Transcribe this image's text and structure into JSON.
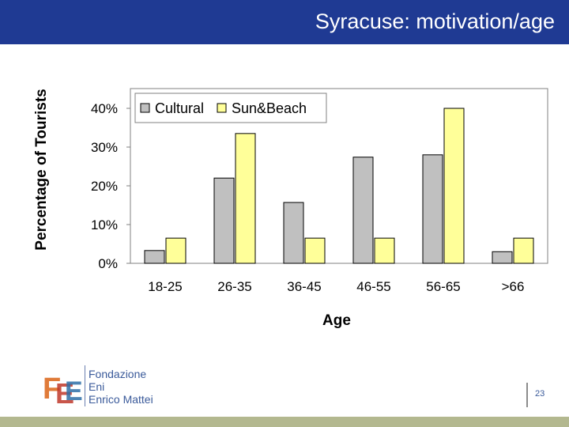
{
  "slide": {
    "title": "Syracuse: motivation/age",
    "page_number": "23"
  },
  "logo": {
    "lines": [
      "Fondazione",
      "Eni",
      "Enrico Mattei"
    ]
  },
  "colors": {
    "title_bar": "#1f3a93",
    "cultural": "#c0c0c0",
    "sun_beach": "#ffff99",
    "footer_bar": "#b3b88f"
  },
  "chart_data": {
    "type": "bar",
    "categories": [
      "18-25",
      "26-35",
      "36-45",
      "46-55",
      "56-65",
      ">66"
    ],
    "series": [
      {
        "name": "Cultural",
        "values": [
          3.3,
          22,
          15.7,
          27.4,
          28,
          3
        ]
      },
      {
        "name": "Sun&Beach",
        "values": [
          6.5,
          33.5,
          6.5,
          6.5,
          40,
          6.5
        ]
      }
    ],
    "xlabel": "Age",
    "ylabel": "Percentage of Tourists",
    "ylim": [
      0,
      40
    ],
    "yticks": [
      "0%",
      "10%",
      "20%",
      "30%",
      "40%"
    ],
    "legend_position": "top-left",
    "grid": false
  }
}
